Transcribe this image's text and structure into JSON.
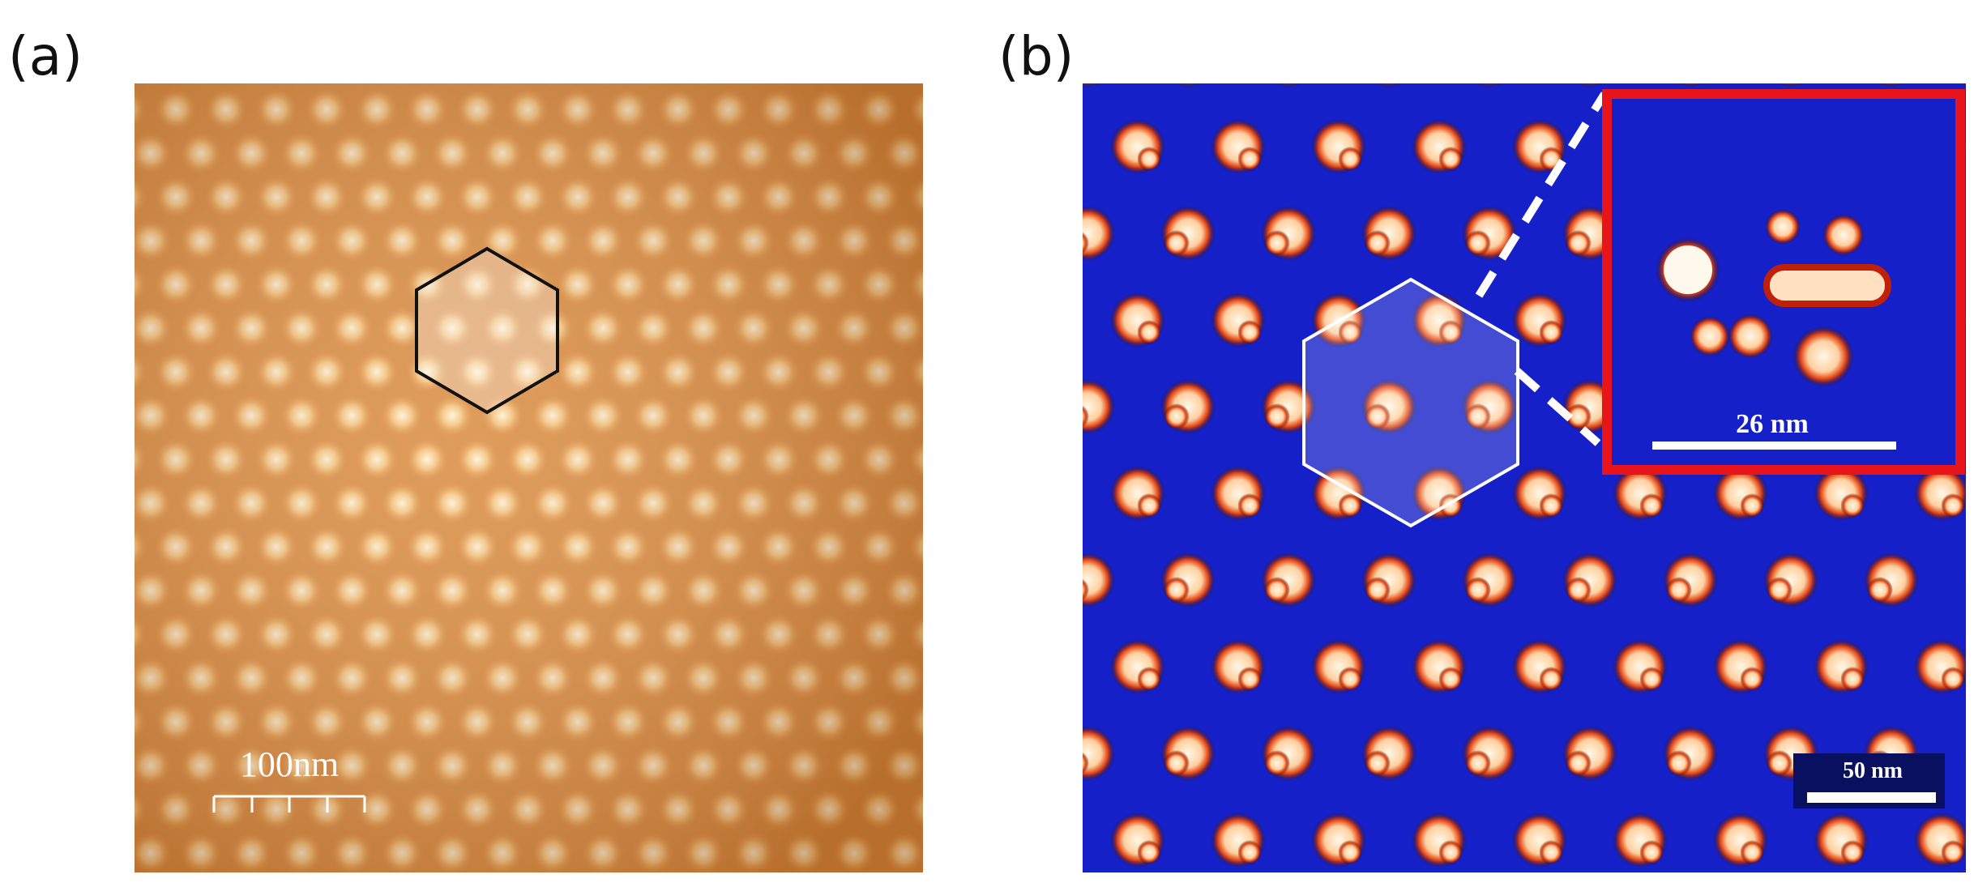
{
  "panels": [
    {
      "label": "(a)",
      "scale_bar": "100nm"
    },
    {
      "label": "(b)",
      "inset_scale_bar": "26 nm",
      "scale_bar": "50 nm"
    }
  ]
}
